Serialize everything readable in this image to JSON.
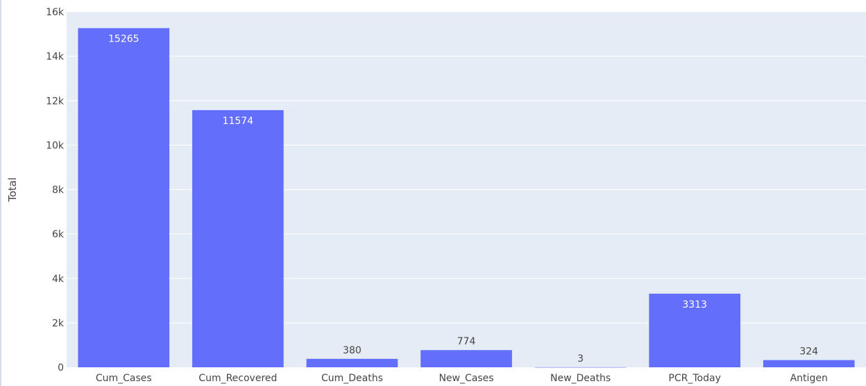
{
  "chart_data": {
    "type": "bar",
    "title": "",
    "xlabel": "",
    "ylabel": "Total",
    "ylim": [
      0,
      16000
    ],
    "yticks": [
      0,
      2000,
      4000,
      6000,
      8000,
      10000,
      12000,
      14000,
      16000
    ],
    "ytick_labels": [
      "0",
      "2k",
      "4k",
      "6k",
      "8k",
      "10k",
      "12k",
      "14k",
      "16k"
    ],
    "categories": [
      "Cum_Cases",
      "Cum_Recovered",
      "Cum_Deaths",
      "New_Cases",
      "New_Deaths",
      "PCR_Today",
      "Antigen"
    ],
    "values": [
      15265,
      11574,
      380,
      774,
      3,
      3313,
      324
    ],
    "data_labels": [
      "15265",
      "11574",
      "380",
      "774",
      "3",
      "3313",
      "324"
    ],
    "grid": true,
    "legend": "none",
    "colors": {
      "bar": "#636efa",
      "plot_background": "#e5ecf6",
      "gridline": "#ffffff",
      "label_inside": "#ffffff",
      "label_outside": "#444444"
    }
  }
}
